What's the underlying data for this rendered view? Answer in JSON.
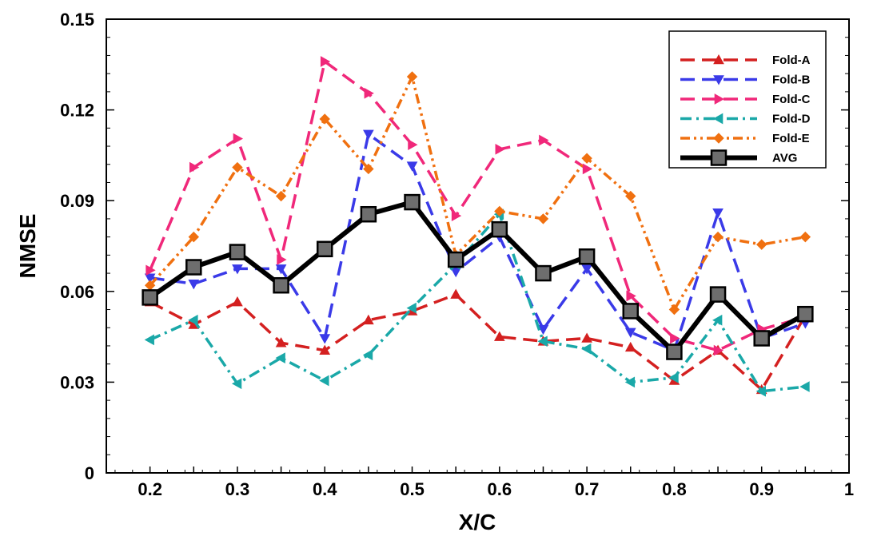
{
  "chart_data": {
    "type": "line",
    "title": "",
    "xlabel": "X/C",
    "ylabel": "NMSE",
    "xlim": [
      0.15,
      1.0
    ],
    "ylim": [
      0,
      0.15
    ],
    "grid": false,
    "legend_position": "top-right",
    "x_ticks": [
      "0.2",
      "0.3",
      "0.4",
      "0.5",
      "0.6",
      "0.7",
      "0.8",
      "0.9",
      "1"
    ],
    "x_tick_values": [
      0.2,
      0.3,
      0.4,
      0.5,
      0.6,
      0.7,
      0.8,
      0.9,
      1.0
    ],
    "y_ticks": [
      "0",
      "0.03",
      "0.06",
      "0.09",
      "0.12",
      "0.15"
    ],
    "y_tick_values": [
      0,
      0.03,
      0.06,
      0.09,
      0.12,
      0.15
    ],
    "x": [
      0.2,
      0.25,
      0.3,
      0.35,
      0.4,
      0.45,
      0.5,
      0.55,
      0.6,
      0.65,
      0.7,
      0.75,
      0.8,
      0.85,
      0.9,
      0.95
    ],
    "series": [
      {
        "name": "Fold-A",
        "color": "#d42020",
        "marker": "triangle-up",
        "dash": "long-dash",
        "values": [
          0.0565,
          0.049,
          0.0565,
          0.043,
          0.0405,
          0.0505,
          0.0535,
          0.059,
          0.045,
          0.0435,
          0.0445,
          0.0415,
          0.0305,
          0.0405,
          0.0275,
          0.052
        ]
      },
      {
        "name": "Fold-B",
        "color": "#3a3ae8",
        "marker": "triangle-down",
        "dash": "long-dash",
        "values": [
          0.0645,
          0.0625,
          0.0675,
          0.0675,
          0.0445,
          0.112,
          0.1015,
          0.0665,
          0.078,
          0.0475,
          0.0675,
          0.0465,
          0.0405,
          0.086,
          0.0445,
          0.0495
        ]
      },
      {
        "name": "Fold-C",
        "color": "#f0287a",
        "marker": "triangle-right",
        "dash": "long-dash",
        "values": [
          0.067,
          0.101,
          0.1105,
          0.0705,
          0.136,
          0.1255,
          0.1085,
          0.085,
          0.107,
          0.11,
          0.1005,
          0.0585,
          0.0445,
          0.0405,
          0.0475,
          0.0515
        ]
      },
      {
        "name": "Fold-D",
        "color": "#1aa8a8",
        "marker": "triangle-left",
        "dash": "dash-dot",
        "values": [
          0.044,
          0.0505,
          0.0295,
          0.038,
          0.0305,
          0.039,
          0.0545,
          0.069,
          0.0855,
          0.0435,
          0.041,
          0.03,
          0.0315,
          0.0505,
          0.027,
          0.0285
        ]
      },
      {
        "name": "Fold-E",
        "color": "#f07010",
        "marker": "diamond",
        "dash": "dash-dot-dot",
        "values": [
          0.062,
          0.078,
          0.101,
          0.0915,
          0.117,
          0.1005,
          0.131,
          0.072,
          0.0865,
          0.084,
          0.104,
          0.0915,
          0.054,
          0.078,
          0.0755,
          0.078
        ]
      },
      {
        "name": "AVG",
        "color": "#000000",
        "marker": "square",
        "dash": "solid",
        "values": [
          0.058,
          0.068,
          0.073,
          0.062,
          0.074,
          0.0855,
          0.0895,
          0.0705,
          0.0805,
          0.066,
          0.0715,
          0.0535,
          0.04,
          0.059,
          0.0445,
          0.0525
        ]
      }
    ]
  }
}
